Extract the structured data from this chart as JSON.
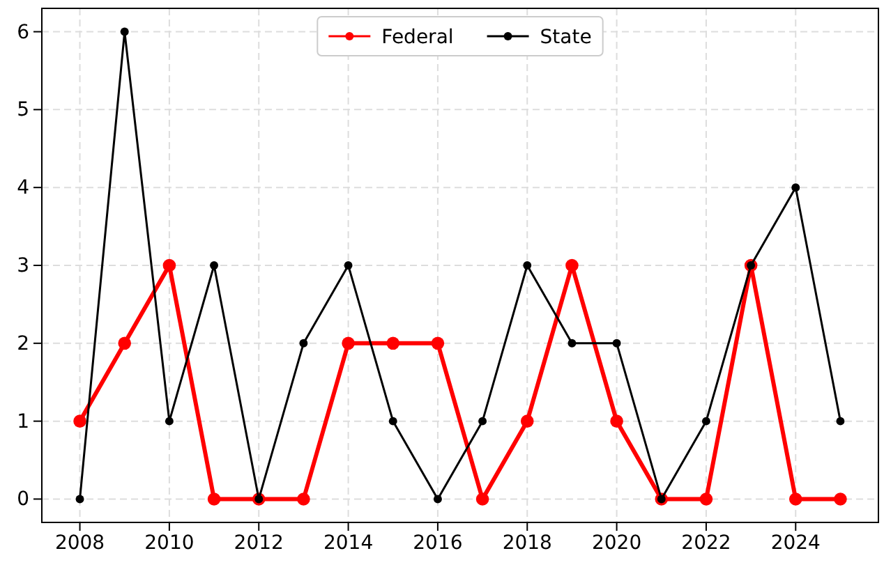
{
  "chart_data": {
    "type": "line",
    "x": [
      2008,
      2009,
      2010,
      2011,
      2012,
      2013,
      2014,
      2015,
      2016,
      2017,
      2018,
      2019,
      2020,
      2021,
      2022,
      2023,
      2024,
      2025
    ],
    "series": [
      {
        "name": "Federal",
        "color": "#ff0000",
        "values": [
          1,
          2,
          3,
          0,
          0,
          0,
          2,
          2,
          2,
          0,
          1,
          3,
          1,
          0,
          0,
          3,
          0,
          0
        ]
      },
      {
        "name": "State",
        "color": "#000000",
        "values": [
          0,
          6,
          1,
          3,
          0,
          2,
          3,
          1,
          0,
          1,
          3,
          2,
          2,
          0,
          1,
          3,
          4,
          1
        ]
      }
    ],
    "xlim": [
      2007.15,
      2025.85
    ],
    "ylim": [
      -0.3,
      6.3
    ],
    "xticks": [
      2008,
      2010,
      2012,
      2014,
      2016,
      2018,
      2020,
      2022,
      2024
    ],
    "yticks": [
      0,
      1,
      2,
      3,
      4,
      5,
      6
    ],
    "grid": true,
    "legend": "top",
    "marker": "circle",
    "line_style": "solid"
  }
}
